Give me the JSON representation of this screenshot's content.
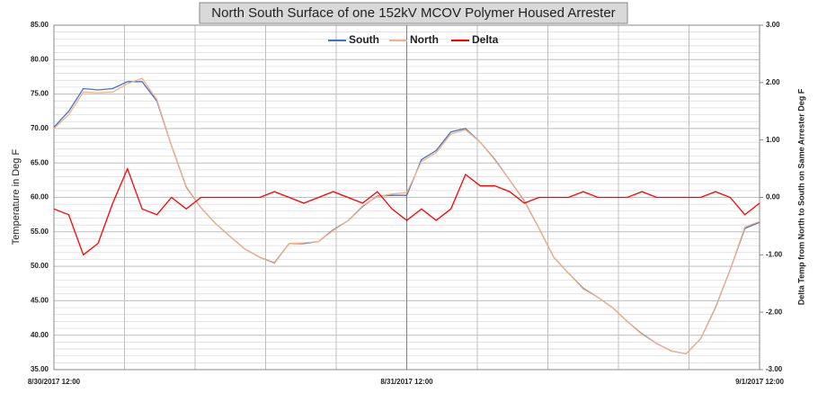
{
  "chart_data": {
    "type": "line",
    "title": "North South  Surface of one  152kV MCOV Polymer Housed Arrester",
    "ylabel": "Temperature in Deg F",
    "y2label": "Delta Temp from North to South on Same Arrester  Deg F",
    "x": [
      "8/30/2017 12:00",
      "8/30/2017 13:00",
      "8/30/2017 14:00",
      "8/30/2017 15:00",
      "8/30/2017 16:00",
      "8/30/2017 17:00",
      "8/30/2017 18:00",
      "8/30/2017 19:00",
      "8/30/2017 20:00",
      "8/30/2017 21:00",
      "8/30/2017 22:00",
      "8/30/2017 23:00",
      "8/31/2017 0:00",
      "8/31/2017 1:00",
      "8/31/2017 2:00",
      "8/31/2017 3:00",
      "8/31/2017 4:00",
      "8/31/2017 5:00",
      "8/31/2017 6:00",
      "8/31/2017 7:00",
      "8/31/2017 8:00",
      "8/31/2017 9:00",
      "8/31/2017 10:00",
      "8/31/2017 11:00",
      "8/31/2017 12:00",
      "8/31/2017 13:00",
      "8/31/2017 14:00",
      "8/31/2017 15:00",
      "8/31/2017 16:00",
      "8/31/2017 17:00",
      "8/31/2017 18:00",
      "8/31/2017 19:00",
      "8/31/2017 20:00",
      "8/31/2017 21:00",
      "8/31/2017 22:00",
      "8/31/2017 23:00",
      "9/1/2017 0:00",
      "9/1/2017 1:00",
      "9/1/2017 2:00",
      "9/1/2017 3:00",
      "9/1/2017 4:00",
      "9/1/2017 5:00",
      "9/1/2017 6:00",
      "9/1/2017 7:00",
      "9/1/2017 8:00",
      "9/1/2017 9:00",
      "9/1/2017 10:00",
      "9/1/2017 11:00",
      "9/1/2017 12:00"
    ],
    "series": [
      {
        "name": "South",
        "color": "#4472c4",
        "values": [
          70.2,
          72.5,
          75.8,
          75.6,
          75.8,
          76.8,
          76.8,
          74,
          67.5,
          61.5,
          58.5,
          56.2,
          54.3,
          52.5,
          51.3,
          50.5,
          53.3,
          53.3,
          53.6,
          55.3,
          56.6,
          58.7,
          60.2,
          60.3,
          60.3,
          65.5,
          66.8,
          69.5,
          70,
          68,
          65.5,
          62.5,
          59.5,
          55.5,
          51.3,
          49,
          46.8,
          45.5,
          44,
          42,
          40.2,
          38.8,
          37.7,
          37.3,
          39.5,
          44,
          49.5,
          55.5,
          56.4
        ]
      },
      {
        "name": "North",
        "color": "#f4b183",
        "values": [
          70,
          72,
          75.3,
          75.2,
          75.3,
          76.5,
          77.3,
          74.2,
          67.5,
          61.6,
          58.5,
          56.2,
          54.3,
          52.5,
          51.3,
          50.4,
          53.3,
          53.4,
          53.6,
          55.2,
          56.6,
          58.8,
          60.1,
          60.5,
          60.7,
          65.2,
          66.5,
          69.2,
          69.8,
          68,
          65.4,
          62.5,
          59.6,
          55.5,
          51.3,
          49,
          46.7,
          45.5,
          44,
          42,
          40.1,
          38.8,
          37.7,
          37.3,
          39.5,
          43.9,
          49.5,
          55.7,
          56.5
        ]
      },
      {
        "name": "Delta",
        "color": "#ff0000",
        "axis": "y2",
        "values": [
          -0.2,
          -0.3,
          -1.0,
          -0.8,
          -0.1,
          0.5,
          -0.2,
          -0.3,
          0,
          -0.2,
          0,
          0,
          0,
          0,
          0,
          0.1,
          0,
          -0.1,
          0,
          0.1,
          0,
          -0.1,
          0.1,
          -0.2,
          -0.4,
          -0.2,
          -0.4,
          -0.2,
          0.4,
          0.2,
          0.2,
          0.1,
          -0.1,
          0,
          0,
          0,
          0.1,
          0,
          0,
          0,
          0.1,
          0,
          0,
          0,
          0,
          0.1,
          0,
          -0.3,
          -0.1
        ]
      }
    ],
    "xlim": [
      "8/30/2017 12:00",
      "9/1/2017 12:00"
    ],
    "xticks": [
      "8/30/2017 12:00",
      "8/31/2017 12:00",
      "9/1/2017 12:00"
    ],
    "ylim": [
      35,
      85
    ],
    "yticks": [
      {
        "value": 35,
        "label": "35.00"
      },
      {
        "value": 40,
        "label": "40.00"
      },
      {
        "value": 45,
        "label": "45.00"
      },
      {
        "value": 50,
        "label": "50.00"
      },
      {
        "value": 55,
        "label": "55.00"
      },
      {
        "value": 60,
        "label": "60.00"
      },
      {
        "value": 65,
        "label": "65.00"
      },
      {
        "value": 70,
        "label": "70.00"
      },
      {
        "value": 75,
        "label": "75.00"
      },
      {
        "value": 80,
        "label": "80.00"
      },
      {
        "value": 85,
        "label": "85.00"
      }
    ],
    "y2lim": [
      -3,
      3
    ],
    "y2ticks": [
      {
        "value": -3,
        "label": "-3.00"
      },
      {
        "value": -2,
        "label": "-2.00"
      },
      {
        "value": -1,
        "label": "-1.00"
      },
      {
        "value": 0,
        "label": "0.00"
      },
      {
        "value": 1,
        "label": "1.00"
      },
      {
        "value": 2,
        "label": "2.00"
      },
      {
        "value": 3,
        "label": "3.00"
      }
    ],
    "grid": true
  }
}
